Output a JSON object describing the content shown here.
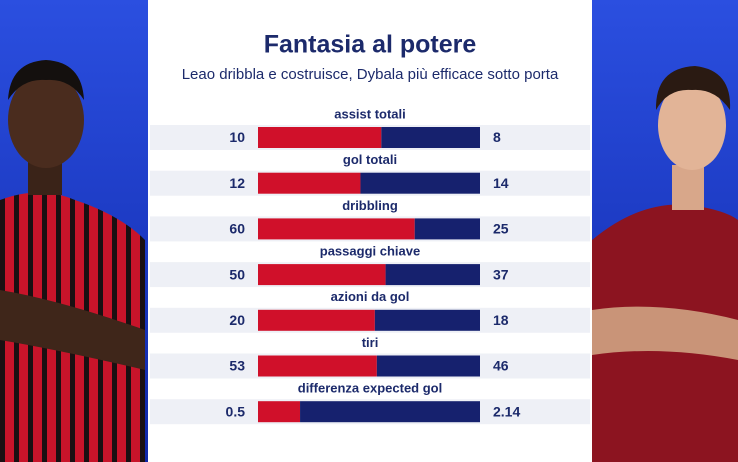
{
  "chart_data": {
    "type": "stacked-share-bar",
    "title": "Fantasia al potere",
    "subtitle": "Leao dribbla e costruisce, Dybala più efficace sotto porta",
    "categories": [
      "assist totali",
      "gol totali",
      "dribbling",
      "passaggi chiave",
      "azioni da gol",
      "tiri",
      "differenza expected gol"
    ],
    "series": [
      {
        "color": "#d0102a",
        "values": [
          10,
          12,
          60,
          50,
          20,
          53,
          0.5
        ]
      },
      {
        "color": "#16216e",
        "values": [
          8,
          14,
          25,
          37,
          18,
          46,
          2.14
        ]
      }
    ]
  }
}
